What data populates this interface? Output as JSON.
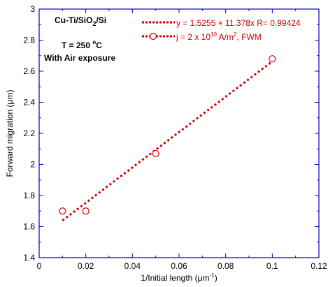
{
  "chart_data": {
    "type": "scatter",
    "xlabel_main": "1/Initial length (",
    "xlabel_unit": "μm",
    "xlabel_sup": "-1",
    "xlabel_close": ")",
    "ylabel_main": "Forward migration (",
    "ylabel_unit": "μm",
    "ylabel_close": ")",
    "xlim": [
      0,
      0.12
    ],
    "ylim": [
      1.4,
      3
    ],
    "xticks": [
      "0",
      "0.02",
      "0.04",
      "0.06",
      "0.08",
      "0.1",
      "0.12"
    ],
    "yticks": [
      "1.4",
      "1.6",
      "1.8",
      "2",
      "2.2",
      "2.4",
      "2.6",
      "2.8",
      "3"
    ],
    "annotations": {
      "sample_main": "Cu-Ti/SiO",
      "sample_sub": "2",
      "sample_tail": "/Si",
      "temp_main": "T = 250 ",
      "temp_deg": "o",
      "temp_unit": "C",
      "exposure": "With Air exposure"
    },
    "series": [
      {
        "name": "j = 2 x 10^10 A/m^2, FWM",
        "legend_main": "j  = 2 x 10",
        "legend_sup1": "10",
        "legend_mid": " A/m",
        "legend_sup2": "2",
        "legend_tail": ", FWM",
        "marker": "open-circle",
        "color": "#cc0000",
        "x": [
          0.01,
          0.02,
          0.05,
          0.1
        ],
        "y": [
          1.7,
          1.7,
          2.07,
          2.68
        ]
      }
    ],
    "fit": {
      "label": "y = 1.5255 + 11.378x   R= 0.99424",
      "intercept": 1.5255,
      "slope": 11.378,
      "x_range": [
        0.01,
        0.1
      ],
      "style": "dotted",
      "color": "#cc0000"
    },
    "frame_color": "#0000cc"
  }
}
